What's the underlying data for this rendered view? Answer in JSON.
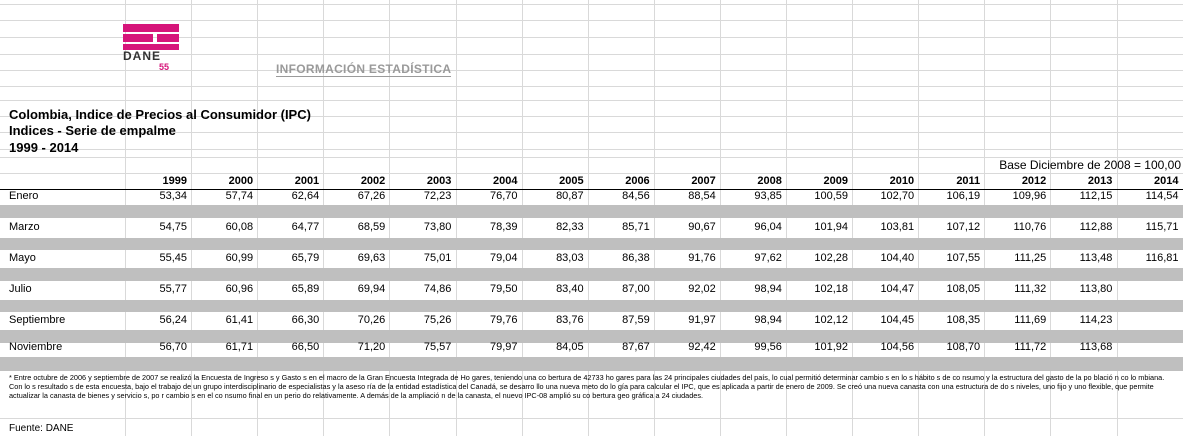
{
  "header": {
    "logo_text": "DANE",
    "logo_number": "55",
    "banner": "INFORMACIÓN ESTADÍSTICA"
  },
  "titles": [
    "Colombia, Indice de Precios al Consumidor (IPC)",
    "Indices - Serie de empalme",
    "1999 - 2014"
  ],
  "base_note": "Base Diciembre de 2008 = 100,00",
  "table": {
    "columns": [
      "1999",
      "2000",
      "2001",
      "2002",
      "2003",
      "2004",
      "2005",
      "2006",
      "2007",
      "2008",
      "2009",
      "2010",
      "2011",
      "2012",
      "2013",
      "2014"
    ],
    "rows": [
      {
        "label": "Enero",
        "values": [
          "53,34",
          "57,74",
          "62,64",
          "67,26",
          "72,23",
          "76,70",
          "80,87",
          "84,56",
          "88,54",
          "93,85",
          "100,59",
          "102,70",
          "106,19",
          "109,96",
          "112,15",
          "114,54"
        ]
      },
      {
        "label": "Marzo",
        "values": [
          "54,75",
          "60,08",
          "64,77",
          "68,59",
          "73,80",
          "78,39",
          "82,33",
          "85,71",
          "90,67",
          "96,04",
          "101,94",
          "103,81",
          "107,12",
          "110,76",
          "112,88",
          "115,71"
        ]
      },
      {
        "label": "Mayo",
        "values": [
          "55,45",
          "60,99",
          "65,79",
          "69,63",
          "75,01",
          "79,04",
          "83,03",
          "86,38",
          "91,76",
          "97,62",
          "102,28",
          "104,40",
          "107,55",
          "111,25",
          "113,48",
          "116,81"
        ]
      },
      {
        "label": "Julio",
        "values": [
          "55,77",
          "60,96",
          "65,89",
          "69,94",
          "74,86",
          "79,50",
          "83,40",
          "87,00",
          "92,02",
          "98,94",
          "102,18",
          "104,47",
          "108,05",
          "111,32",
          "113,80"
        ]
      },
      {
        "label": "Septiembre",
        "values": [
          "56,24",
          "61,41",
          "66,30",
          "70,26",
          "75,26",
          "79,76",
          "83,76",
          "87,59",
          "91,97",
          "98,94",
          "102,12",
          "104,45",
          "108,35",
          "111,69",
          "114,23"
        ]
      },
      {
        "label": "Noviembre",
        "values": [
          "56,70",
          "61,71",
          "66,50",
          "71,20",
          "75,57",
          "79,97",
          "84,05",
          "87,67",
          "92,42",
          "99,56",
          "101,92",
          "104,56",
          "108,70",
          "111,72",
          "113,68"
        ]
      }
    ]
  },
  "footnote": "* Entre octubre de 2006 y septiembre de 2007 se realizó la Encuesta de Ingreso s y Gasto s en el macro de la Gran Encuesta Integrada de Ho gares, teniendo una co bertura de 42733 ho gares para las 24 principales ciudades del país, lo cual permitió determinar cambio s en lo s hábito s de co nsumo y la estructura del gasto de la po blació n co lo mbiana. Con lo s resultado s de esta encuesta, bajo el trabajo de un grupo interdisciplinario de especialistas y la aseso ría de la entidad estadística del Canadá, se desarro llo una nueva meto do lo gía para calcular el IPC, que es aplicada a partir de enero de 2009. Se creó una nueva canasta con una estructura de do s niveles, uno fijo y uno flexible, que permite actualizar la canasta de bienes y servicio s, po r cambio s en el co nsumo final en un perio do relativamente. A demás de la ampliació n de la canasta, el nuevo IPC-08 amplió su co bertura geo gráfica a 24 ciudades.",
  "source": "Fuente: DANE"
}
